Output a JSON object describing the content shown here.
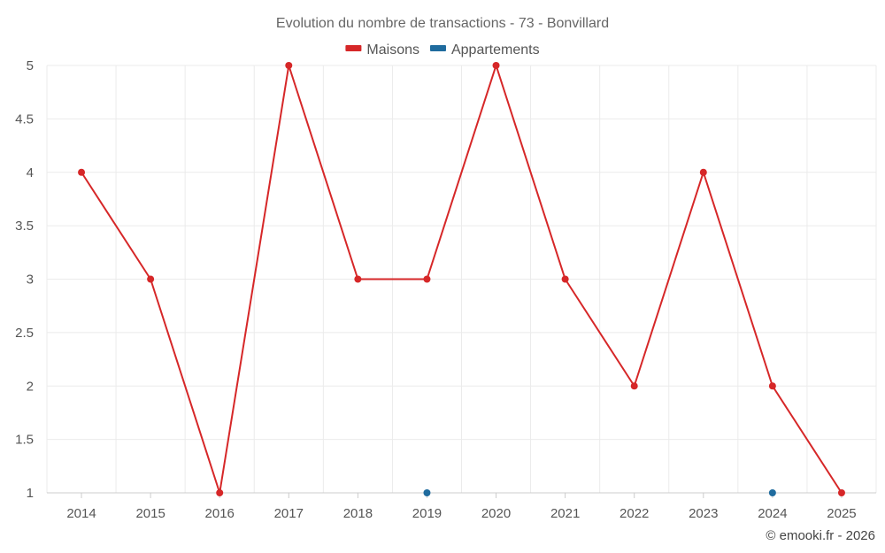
{
  "chart_data": {
    "type": "line",
    "title": "Evolution du nombre de transactions - 73 - Bonvillard",
    "categories": [
      "2014",
      "2015",
      "2016",
      "2017",
      "2018",
      "2019",
      "2020",
      "2021",
      "2022",
      "2023",
      "2024",
      "2025"
    ],
    "series": [
      {
        "name": "Maisons",
        "color": "#d62728",
        "values": [
          4,
          3,
          1,
          5,
          3,
          3,
          5,
          3,
          2,
          4,
          2,
          1
        ]
      },
      {
        "name": "Appartements",
        "color": "#1f6b9e",
        "values": [
          null,
          null,
          null,
          null,
          null,
          1,
          null,
          null,
          null,
          null,
          1,
          null
        ]
      }
    ],
    "ylim": [
      1,
      5
    ],
    "yticks": [
      "1",
      "1.5",
      "2",
      "2.5",
      "3",
      "3.5",
      "4",
      "4.5",
      "5"
    ],
    "xlabel": "",
    "ylabel": "",
    "grid": true,
    "legend_position": "top-center"
  },
  "credit": "© emooki.fr - 2026"
}
